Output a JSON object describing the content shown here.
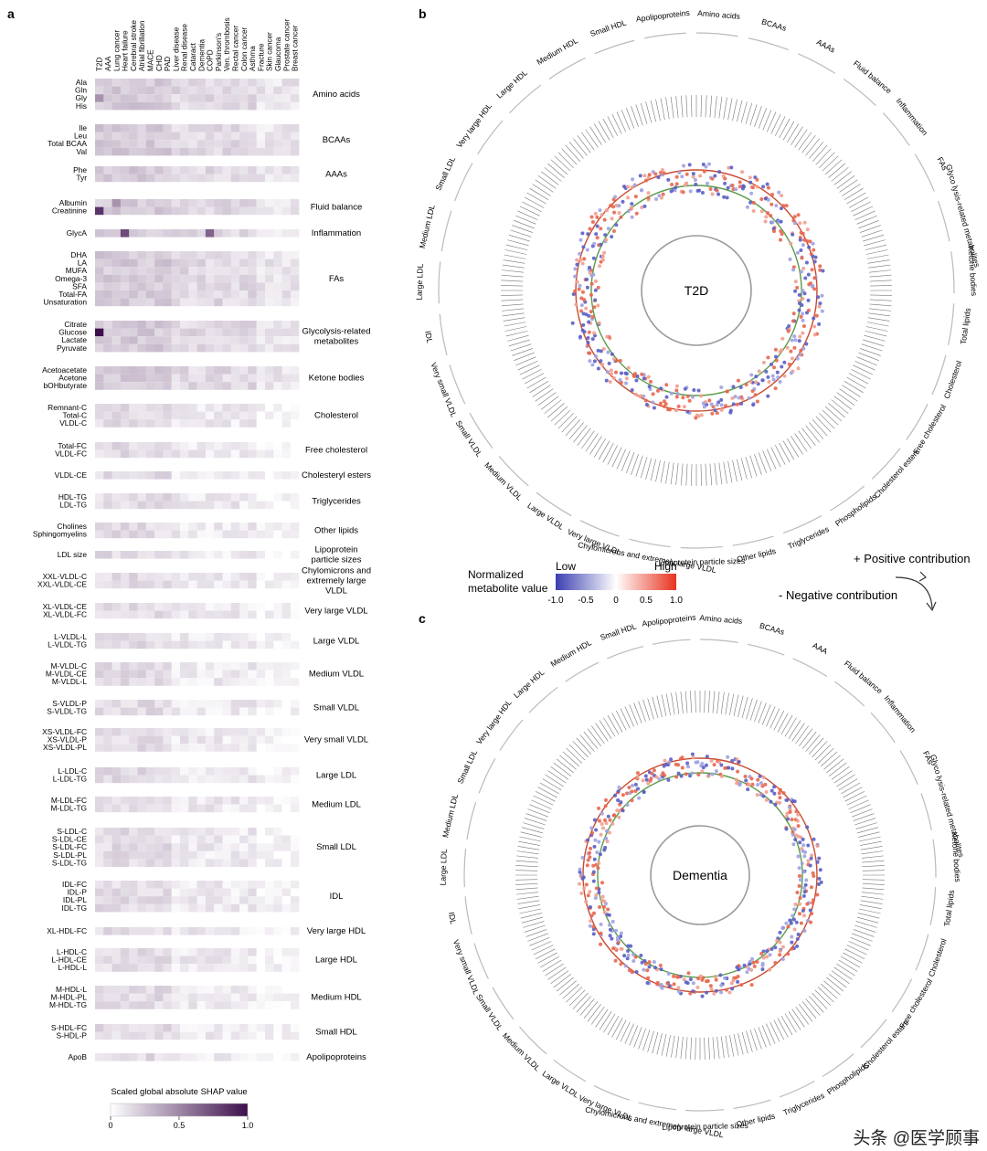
{
  "panel_labels": {
    "a": "a",
    "b": "b",
    "c": "c"
  },
  "chart_data": [
    {
      "type": "heatmap",
      "panel": "a",
      "diseases": [
        "T2D",
        "AAA",
        "Lung cancer",
        "Heart failure",
        "Cerebral stroke",
        "Atrial fibrillation",
        "MACE",
        "CHD",
        "PAD",
        "Liver disease",
        "Renal disease",
        "Cataract",
        "Dementia",
        "COPD",
        "Parkinson's",
        "Ven. thrombosis",
        "Rectal cancer",
        "Colon cancer",
        "Asthma",
        "Fracture",
        "Skin cancer",
        "Glaucoma",
        "Prostate cancer",
        "Breast cancer"
      ],
      "colorbar": {
        "title": "Scaled global absolute SHAP value",
        "ticks": [
          "0",
          "0.5",
          "1.0"
        ],
        "low": "#ffffff",
        "high": "#3d0f4d",
        "range": [
          0,
          1
        ]
      },
      "groups": [
        {
          "name": "Amino acids",
          "rows": [
            "Ala",
            "Gln",
            "Gly",
            "His"
          ]
        },
        {
          "name": "BCAAs",
          "rows": [
            "Ile",
            "Leu",
            "Total BCAA",
            "Val"
          ]
        },
        {
          "name": "AAAs",
          "rows": [
            "Phe",
            "Tyr"
          ]
        },
        {
          "name": "Fluid balance",
          "rows": [
            "Albumin",
            "Creatinine"
          ]
        },
        {
          "name": "Inflammation",
          "rows": [
            "GlycA"
          ]
        },
        {
          "name": "FAs",
          "rows": [
            "DHA",
            "LA",
            "MUFA",
            "Omega-3",
            "SFA",
            "Total-FA",
            "Unsaturation"
          ]
        },
        {
          "name": "Glycolysis-related metabolites",
          "rows": [
            "Citrate",
            "Glucose",
            "Lactate",
            "Pyruvate"
          ]
        },
        {
          "name": "Ketone bodies",
          "rows": [
            "Acetoacetate",
            "Acetone",
            "bOHbutyrate"
          ]
        },
        {
          "name": "Cholesterol",
          "rows": [
            "Remnant-C",
            "Total-C",
            "VLDL-C"
          ]
        },
        {
          "name": "Free cholesterol",
          "rows": [
            "Total-FC",
            "VLDL-FC"
          ]
        },
        {
          "name": "Cholesteryl esters",
          "rows": [
            "VLDL-CE"
          ]
        },
        {
          "name": "Triglycerides",
          "rows": [
            "HDL-TG",
            "LDL-TG"
          ]
        },
        {
          "name": "Other lipids",
          "rows": [
            "Cholines",
            "Sphingomyelins"
          ]
        },
        {
          "name": "Lipoprotein particle sizes",
          "rows": [
            "LDL size"
          ]
        },
        {
          "name": "Chylomicrons and extremely large VLDL",
          "rows": [
            "XXL-VLDL-C",
            "XXL-VLDL-CE"
          ]
        },
        {
          "name": "Very large VLDL",
          "rows": [
            "XL-VLDL-CE",
            "XL-VLDL-FC"
          ]
        },
        {
          "name": "Large VLDL",
          "rows": [
            "L-VLDL-L",
            "L-VLDL-TG"
          ]
        },
        {
          "name": "Medium VLDL",
          "rows": [
            "M-VLDL-C",
            "M-VLDL-CE",
            "M-VLDL-L"
          ]
        },
        {
          "name": "Small VLDL",
          "rows": [
            "S-VLDL-P",
            "S-VLDL-TG"
          ]
        },
        {
          "name": "Very small VLDL",
          "rows": [
            "XS-VLDL-FC",
            "XS-VLDL-P",
            "XS-VLDL-PL"
          ]
        },
        {
          "name": "Large LDL",
          "rows": [
            "L-LDL-C",
            "L-LDL-TG"
          ]
        },
        {
          "name": "Medium LDL",
          "rows": [
            "M-LDL-FC",
            "M-LDL-TG"
          ]
        },
        {
          "name": "Small LDL",
          "rows": [
            "S-LDL-C",
            "S-LDL-CE",
            "S-LDL-FC",
            "S-LDL-PL",
            "S-LDL-TG"
          ]
        },
        {
          "name": "IDL",
          "rows": [
            "IDL-FC",
            "IDL-P",
            "IDL-PL",
            "IDL-TG"
          ]
        },
        {
          "name": "Very large HDL",
          "rows": [
            "XL-HDL-FC"
          ]
        },
        {
          "name": "Large HDL",
          "rows": [
            "L-HDL-C",
            "L-HDL-CE",
            "L-HDL-L"
          ]
        },
        {
          "name": "Medium HDL",
          "rows": [
            "M-HDL-L",
            "M-HDL-PL",
            "M-HDL-TG"
          ]
        },
        {
          "name": "Small HDL",
          "rows": [
            "S-HDL-FC",
            "S-HDL-P"
          ]
        },
        {
          "name": "Apolipoproteins",
          "rows": [
            "ApoB"
          ]
        }
      ],
      "strong_cells": [
        {
          "row": "Glucose",
          "disease": "T2D",
          "value": 1.0
        },
        {
          "row": "Creatinine",
          "disease": "T2D",
          "value": 0.85
        },
        {
          "row": "GlycA",
          "disease": "Heart failure",
          "value": 0.75
        },
        {
          "row": "GlycA",
          "disease": "COPD",
          "value": 0.65
        },
        {
          "row": "Gly",
          "disease": "T2D",
          "value": 0.45
        },
        {
          "row": "Albumin",
          "disease": "Lung cancer",
          "value": 0.45
        }
      ]
    },
    {
      "type": "scatter",
      "subtype": "circular",
      "panel": "b",
      "center_label": "T2D",
      "sectors": [
        "Amino acids",
        "BCAAs",
        "AAAs",
        "Fluid balance",
        "Inflammation",
        "FAs",
        "Glyco lysis-related metabolites",
        "Ketone bodies",
        "Total lipids",
        "Cholesterol",
        "Free cholesterol",
        "Cholesterol esters",
        "Phospholipids",
        "Triglycerides",
        "Other lipids",
        "Lipoprotein particle sizes",
        "Chylomicrons and extremely large VLDL",
        "Very large VLDL",
        "Large VLDL",
        "Medium VLDL",
        "Small VLDL",
        "Very small VLDL",
        "IDL",
        "Large LDL",
        "Medium LDL",
        "Small LDL",
        "Very large HDL",
        "Large HDL",
        "Medium HDL",
        "Small HDL",
        "Apolipoproteins"
      ]
    },
    {
      "type": "scatter",
      "subtype": "circular",
      "panel": "c",
      "center_label": "Dementia",
      "sectors": [
        "Amino acids",
        "BCAAs",
        "AAA",
        "Fluid balance",
        "Inflammation",
        "FAs",
        "Glyco lysis-related metabolites",
        "Ketone bodies",
        "Total lipids",
        "Cholesterol",
        "Free cholesterol",
        "Cholesterol esters",
        "Phospholipids",
        "Triglycerides",
        "Other lipids",
        "Lipoprotein particle sizes",
        "Chylomicrons and extremely large VLDL",
        "Very large VLDL",
        "Large VLDL",
        "Medium VLDL",
        "Small VLDL",
        "Very small VLDL",
        "IDL",
        "Large LDL",
        "Medium LDL",
        "Small LDL",
        "Very large HDL",
        "Large HDL",
        "Medium HDL",
        "Small HDL",
        "Apolipoproteins"
      ]
    }
  ],
  "legend": {
    "title_line1": "Normalized",
    "title_line2": "metabolite value",
    "low": "Low",
    "high": "High",
    "ticks": [
      "-1.0",
      "-0.5",
      "0",
      "0.5",
      "1.0"
    ],
    "colors": {
      "low": "#3b3fb0",
      "mid": "#ffffff",
      "high": "#e8321e"
    },
    "positive": "+ Positive contribution",
    "negative": "- Negative contribution"
  },
  "watermark": "头条 @医学顾事",
  "colors": {
    "ring_red": "#c84a2e",
    "ring_green": "#5a9b4a",
    "ring_grey": "#9a9a9a"
  }
}
